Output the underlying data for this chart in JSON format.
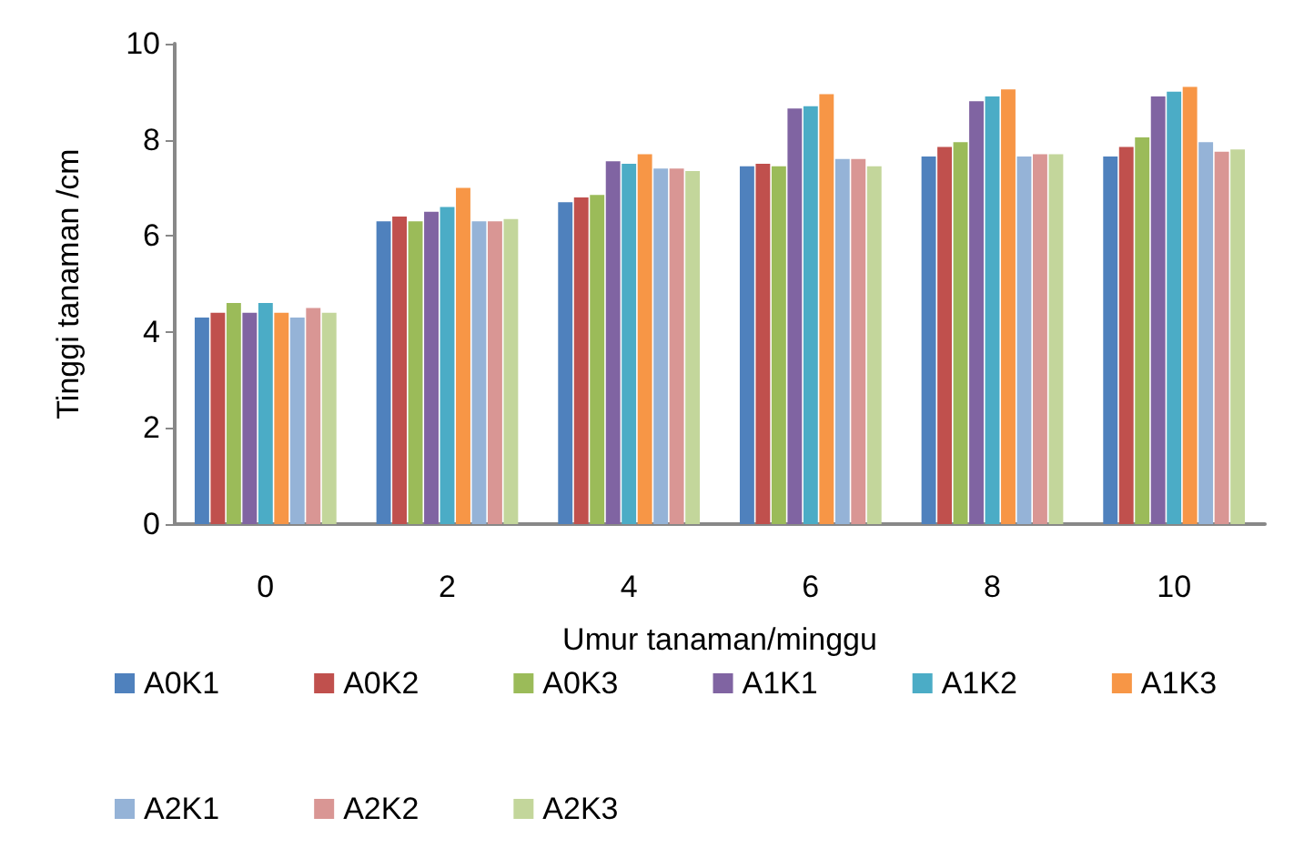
{
  "chart_data": {
    "type": "bar",
    "xlabel": "Umur tanaman/minggu",
    "ylabel": "Tinggi tanaman /cm",
    "categories": [
      "0",
      "2",
      "4",
      "6",
      "8",
      "10"
    ],
    "series": [
      {
        "name": "A0K1",
        "color": "#4f81bd",
        "values": [
          4.3,
          6.3,
          6.7,
          7.45,
          7.65,
          7.65
        ]
      },
      {
        "name": "A0K2",
        "color": "#c0504d",
        "values": [
          4.4,
          6.4,
          6.8,
          7.5,
          7.85,
          7.85
        ]
      },
      {
        "name": "A0K3",
        "color": "#9bbb59",
        "values": [
          4.6,
          6.3,
          6.85,
          7.45,
          7.95,
          8.05
        ]
      },
      {
        "name": "A1K1",
        "color": "#8064a2",
        "values": [
          4.4,
          6.5,
          7.55,
          8.65,
          8.8,
          8.9
        ]
      },
      {
        "name": "A1K2",
        "color": "#4bacc6",
        "values": [
          4.6,
          6.6,
          7.5,
          8.7,
          8.9,
          9.0
        ]
      },
      {
        "name": "A1K3",
        "color": "#f79646",
        "values": [
          4.4,
          7.0,
          7.7,
          8.95,
          9.05,
          9.1
        ]
      },
      {
        "name": "A2K1",
        "color": "#95b3d7",
        "values": [
          4.3,
          6.3,
          7.4,
          7.6,
          7.65,
          7.95
        ]
      },
      {
        "name": "A2K2",
        "color": "#d99694",
        "values": [
          4.5,
          6.3,
          7.4,
          7.6,
          7.7,
          7.75
        ]
      },
      {
        "name": "A2K3",
        "color": "#c3d69b",
        "values": [
          4.4,
          6.35,
          7.35,
          7.45,
          7.7,
          7.8
        ]
      }
    ],
    "ylim": [
      0,
      10
    ],
    "yticks": [
      0,
      2,
      4,
      6,
      8,
      10
    ],
    "grid": false,
    "legend": "bottom"
  }
}
